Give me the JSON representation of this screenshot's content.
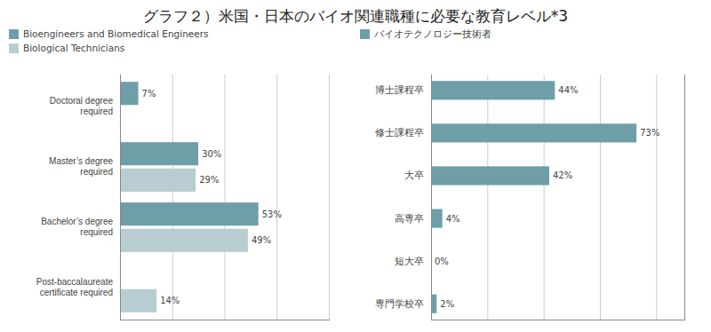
{
  "chart_data": [
    {
      "type": "bar",
      "title": "グラフ２）米国・日本のバイオ関連職種に必要な教育レベル*3",
      "orientation": "horizontal",
      "categories": [
        "Doctoral degree\nrequired",
        "Master’s degree\nrequired",
        "Bachelor’s degree\nrequired",
        "Post-baccalaureate\ncertificate required"
      ],
      "series": [
        {
          "name": "Bioengineers and Biomedical Engineers",
          "color": "#6e9fa8",
          "values": [
            7,
            30,
            53,
            0
          ],
          "value_labels": [
            "7%",
            "30%",
            "53%",
            null
          ]
        },
        {
          "name": "Biological Technicians",
          "color": "#b8cdd1",
          "values": [
            0,
            29,
            49,
            14
          ],
          "value_labels": [
            null,
            "29%",
            "49%",
            "14%"
          ]
        }
      ],
      "xlim": [
        0,
        80
      ],
      "xticks": [
        20,
        40,
        60,
        80
      ],
      "grid": true,
      "legend": "upper left",
      "data_labels": true,
      "tick_labels": "y"
    },
    {
      "type": "bar",
      "orientation": "horizontal",
      "categories": [
        "博士課程卒",
        "修士課程卒",
        "大卒",
        "高専卒",
        "短大卒",
        "専門学校卒"
      ],
      "series": [
        {
          "name": "バイオテクノロジー技術者",
          "color": "#6e9fa8",
          "values": [
            44,
            73,
            42,
            4,
            0,
            2
          ],
          "value_labels": [
            "44%",
            "73%",
            "42%",
            "4%",
            "0%",
            "2%"
          ]
        }
      ],
      "xlim": [
        0,
        90
      ],
      "xticks": [
        20,
        40,
        60,
        80
      ],
      "grid": true,
      "legend": "upper left",
      "data_labels": true,
      "tick_labels": "y"
    }
  ]
}
